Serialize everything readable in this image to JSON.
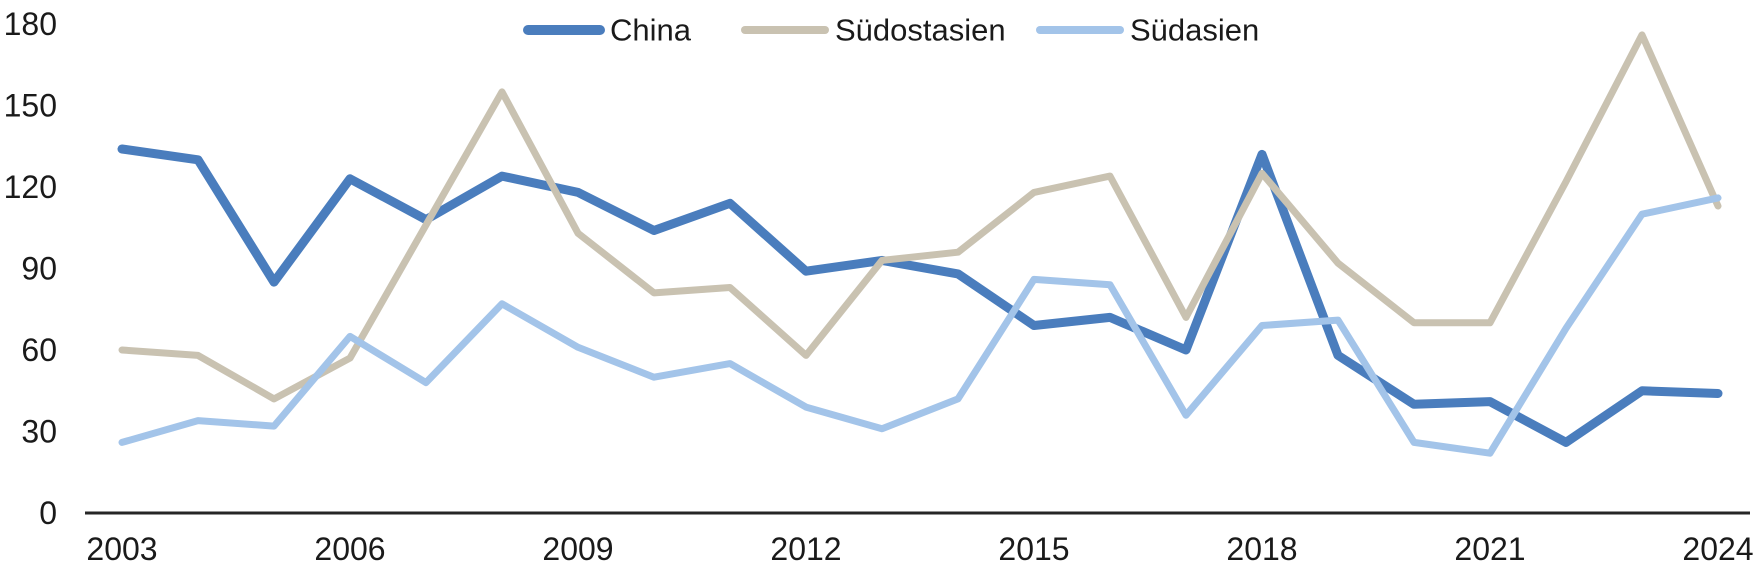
{
  "chart_data": {
    "type": "line",
    "title": "",
    "xlabel": "",
    "ylabel": "",
    "x": [
      2003,
      2004,
      2005,
      2006,
      2007,
      2008,
      2009,
      2010,
      2011,
      2012,
      2013,
      2014,
      2015,
      2016,
      2017,
      2018,
      2019,
      2020,
      2021,
      2022,
      2023,
      2024
    ],
    "series": [
      {
        "name": "China",
        "color": "#4A7DBD",
        "values": [
          134,
          130,
          85,
          123,
          108,
          124,
          118,
          104,
          114,
          89,
          93,
          88,
          69,
          72,
          60,
          132,
          58,
          40,
          41,
          26,
          45,
          44
        ]
      },
      {
        "name": "Südostasien",
        "color": "#C9C2B1",
        "values": [
          60,
          58,
          42,
          57,
          106,
          155,
          103,
          81,
          83,
          58,
          93,
          96,
          118,
          124,
          72,
          125,
          92,
          70,
          70,
          122,
          176,
          113
        ]
      },
      {
        "name": "Südasien",
        "color": "#A3C4E9",
        "values": [
          26,
          34,
          32,
          65,
          48,
          77,
          61,
          50,
          55,
          39,
          31,
          42,
          86,
          84,
          36,
          69,
          71,
          26,
          22,
          68,
          110,
          116
        ]
      }
    ],
    "ylim": [
      0,
      180
    ],
    "yticks": [
      0,
      30,
      60,
      90,
      120,
      150,
      180
    ],
    "xticks": [
      2003,
      2006,
      2009,
      2012,
      2015,
      2018,
      2021,
      2024
    ],
    "grid": false,
    "legend_position": "top",
    "style": {
      "axis_color": "#262626",
      "tick_label_color": "#1a1a1a",
      "legend_label_color": "#1a1a1a",
      "background": "#ffffff"
    }
  }
}
